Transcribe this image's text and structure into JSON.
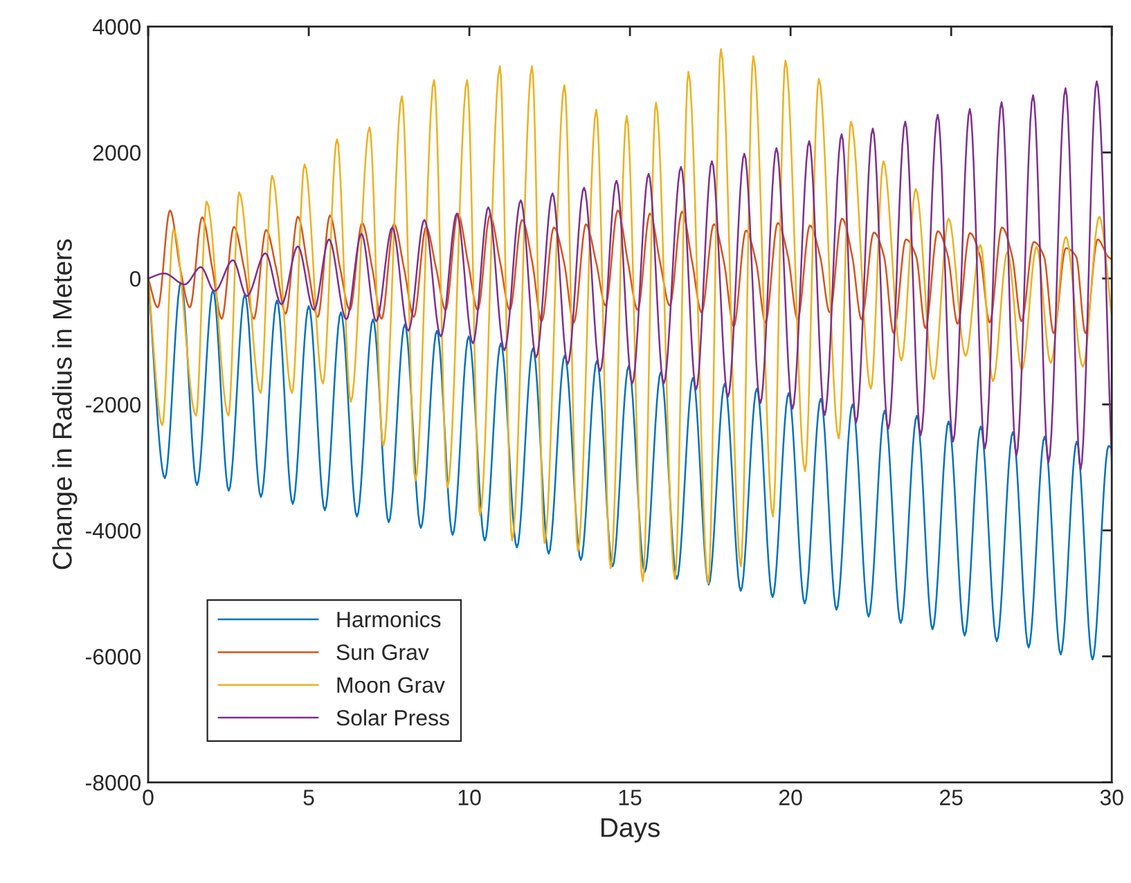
{
  "chart_data": {
    "type": "line",
    "xlabel": "Days",
    "ylabel": "Change in Radius in Meters",
    "xlim": [
      0,
      30
    ],
    "xticks": [
      0,
      5,
      10,
      15,
      20,
      25,
      30
    ],
    "ylim": [
      -8000,
      4000
    ],
    "yticks": [
      -8000,
      -6000,
      -4000,
      -2000,
      0,
      2000,
      4000
    ],
    "grid": false,
    "legend": "bottom left",
    "line_style": "solid",
    "marker": "none",
    "series": [
      {
        "name": "Harmonics",
        "color": "#0072bd",
        "x": [
          0,
          0.52,
          1.02,
          1.52,
          2.02,
          2.51,
          3.01,
          3.51,
          4.01,
          4.5,
          5.0,
          5.5,
          6.0,
          6.5,
          7.0,
          7.49,
          7.99,
          8.49,
          8.99,
          9.48,
          9.98,
          10.48,
          10.98,
          11.48,
          11.98,
          12.47,
          12.97,
          13.47,
          13.97,
          14.46,
          14.96,
          15.46,
          15.96,
          16.46,
          16.96,
          17.45,
          17.95,
          18.45,
          18.95,
          19.44,
          19.94,
          20.44,
          20.94,
          21.43,
          21.93,
          22.43,
          22.93,
          23.43,
          23.93,
          24.42,
          24.92,
          25.42,
          25.92,
          26.42,
          26.92,
          27.41,
          27.91,
          28.41,
          28.91,
          29.4,
          29.9,
          30
        ],
        "values": [
          0,
          -3170,
          -60,
          -3280,
          -190,
          -3370,
          -260,
          -3470,
          -350,
          -3580,
          -440,
          -3680,
          -540,
          -3780,
          -650,
          -3870,
          -730,
          -3960,
          -830,
          -4070,
          -920,
          -4160,
          -1030,
          -4270,
          -1110,
          -4370,
          -1220,
          -4470,
          -1310,
          -4570,
          -1390,
          -4660,
          -1490,
          -4770,
          -1580,
          -4860,
          -1670,
          -4960,
          -1750,
          -5060,
          -1820,
          -5160,
          -1910,
          -5260,
          -2000,
          -5370,
          -2100,
          -5470,
          -2180,
          -5570,
          -2270,
          -5670,
          -2350,
          -5760,
          -2440,
          -5860,
          -2510,
          -5970,
          -2590,
          -6050,
          -2660,
          -2700
        ]
      },
      {
        "name": "Sun Grav",
        "color": "#d95319",
        "x": [
          0,
          0.3,
          0.68,
          1.0,
          1.3,
          1.68,
          2.0,
          2.29,
          2.67,
          2.99,
          3.29,
          3.67,
          3.99,
          4.28,
          4.66,
          4.98,
          5.28,
          5.66,
          5.98,
          6.28,
          6.66,
          6.98,
          7.27,
          7.65,
          7.97,
          8.27,
          8.65,
          8.97,
          9.26,
          9.64,
          9.96,
          10.26,
          10.64,
          10.96,
          11.26,
          11.64,
          11.96,
          12.25,
          12.63,
          12.95,
          13.25,
          13.63,
          13.95,
          14.24,
          14.62,
          14.94,
          15.24,
          15.62,
          15.94,
          16.24,
          16.62,
          16.94,
          17.23,
          17.61,
          17.93,
          18.23,
          18.61,
          18.93,
          19.22,
          19.6,
          19.92,
          20.22,
          20.6,
          20.92,
          21.22,
          21.6,
          21.92,
          22.21,
          22.59,
          22.91,
          23.21,
          23.59,
          23.91,
          24.2,
          24.58,
          24.9,
          25.2,
          25.58,
          25.9,
          26.2,
          26.58,
          26.9,
          27.19,
          27.57,
          27.89,
          28.19,
          28.57,
          28.89,
          29.18,
          29.56,
          29.88,
          30
        ],
        "values": [
          0,
          -460,
          1080,
          150,
          -460,
          970,
          150,
          -640,
          820,
          150,
          -640,
          770,
          150,
          -560,
          980,
          150,
          -610,
          1000,
          150,
          -500,
          880,
          150,
          -640,
          860,
          150,
          -610,
          810,
          150,
          -500,
          1030,
          250,
          -500,
          1000,
          250,
          -500,
          930,
          250,
          -680,
          810,
          250,
          -700,
          860,
          250,
          -430,
          1080,
          250,
          -500,
          1030,
          250,
          -430,
          1060,
          250,
          -540,
          860,
          250,
          -760,
          760,
          250,
          -700,
          880,
          350,
          -650,
          840,
          350,
          -540,
          950,
          350,
          -650,
          730,
          350,
          -870,
          620,
          350,
          -790,
          750,
          350,
          -720,
          720,
          350,
          -700,
          810,
          350,
          -680,
          580,
          350,
          -870,
          480,
          350,
          -870,
          620,
          350,
          300
        ]
      },
      {
        "name": "Moon Grav",
        "color": "#edb120",
        "x": [
          0,
          0.44,
          0.79,
          1.49,
          1.82,
          2.5,
          2.83,
          3.5,
          3.86,
          4.48,
          4.87,
          5.44,
          5.88,
          6.31,
          6.89,
          7.32,
          7.9,
          8.32,
          8.9,
          9.32,
          9.93,
          10.33,
          10.95,
          11.33,
          11.95,
          12.34,
          12.96,
          13.38,
          13.95,
          14.4,
          14.9,
          15.4,
          15.81,
          16.4,
          16.82,
          17.44,
          17.83,
          18.45,
          18.84,
          19.45,
          19.84,
          20.45,
          20.88,
          21.5,
          21.88,
          22.5,
          22.89,
          23.45,
          23.9,
          24.45,
          24.92,
          25.45,
          25.91,
          26.3,
          26.75,
          27.2,
          27.66,
          28.1,
          28.57,
          29.1,
          29.61,
          30
        ],
        "values": [
          0,
          -2330,
          780,
          -2180,
          1220,
          -2180,
          1370,
          -1820,
          1630,
          -1820,
          1810,
          -1670,
          2210,
          -1960,
          2400,
          -2660,
          2890,
          -3210,
          3150,
          -3320,
          3150,
          -3760,
          3370,
          -4160,
          3370,
          -4200,
          3070,
          -4330,
          2680,
          -4600,
          2580,
          -4810,
          2790,
          -4770,
          3280,
          -4840,
          3640,
          -4570,
          3530,
          -3780,
          3460,
          -3060,
          3170,
          -2540,
          2490,
          -1750,
          1860,
          -1300,
          1420,
          -1600,
          950,
          -1230,
          530,
          -1630,
          420,
          -1450,
          500,
          -1340,
          660,
          -1400,
          980,
          -600
        ]
      },
      {
        "name": "Solar Press",
        "color": "#7e2f8e",
        "x": [
          0,
          0.5,
          1.14,
          1.64,
          2.07,
          2.64,
          3.07,
          3.65,
          4.15,
          4.66,
          5.16,
          5.63,
          6.17,
          6.64,
          7.1,
          7.6,
          8.1,
          8.6,
          9.11,
          9.61,
          10.11,
          10.59,
          11.09,
          11.6,
          12.08,
          12.59,
          13.06,
          13.57,
          14.07,
          14.58,
          15.07,
          15.58,
          16.05,
          16.59,
          17.06,
          17.55,
          18.05,
          18.56,
          19.06,
          19.56,
          20.06,
          20.58,
          21.06,
          21.59,
          22.04,
          22.56,
          23.04,
          23.57,
          24.05,
          24.58,
          25.06,
          25.58,
          26.05,
          26.57,
          27.03,
          27.55,
          28.03,
          28.56,
          29.03,
          29.53,
          30
        ],
        "values": [
          0,
          80,
          -95,
          180,
          -200,
          290,
          -280,
          400,
          -410,
          510,
          -500,
          620,
          -650,
          710,
          -680,
          810,
          -830,
          930,
          -920,
          1030,
          -1030,
          1130,
          -1140,
          1240,
          -1250,
          1350,
          -1360,
          1440,
          -1470,
          1550,
          -1670,
          1660,
          -1670,
          1770,
          -1760,
          1860,
          -1880,
          1980,
          -1980,
          2070,
          -2070,
          2180,
          -2170,
          2290,
          -2290,
          2380,
          -2390,
          2490,
          -2490,
          2600,
          -2590,
          2690,
          -2700,
          2800,
          -2810,
          2910,
          -2920,
          3020,
          -3030,
          3130,
          -2900
        ]
      }
    ]
  }
}
